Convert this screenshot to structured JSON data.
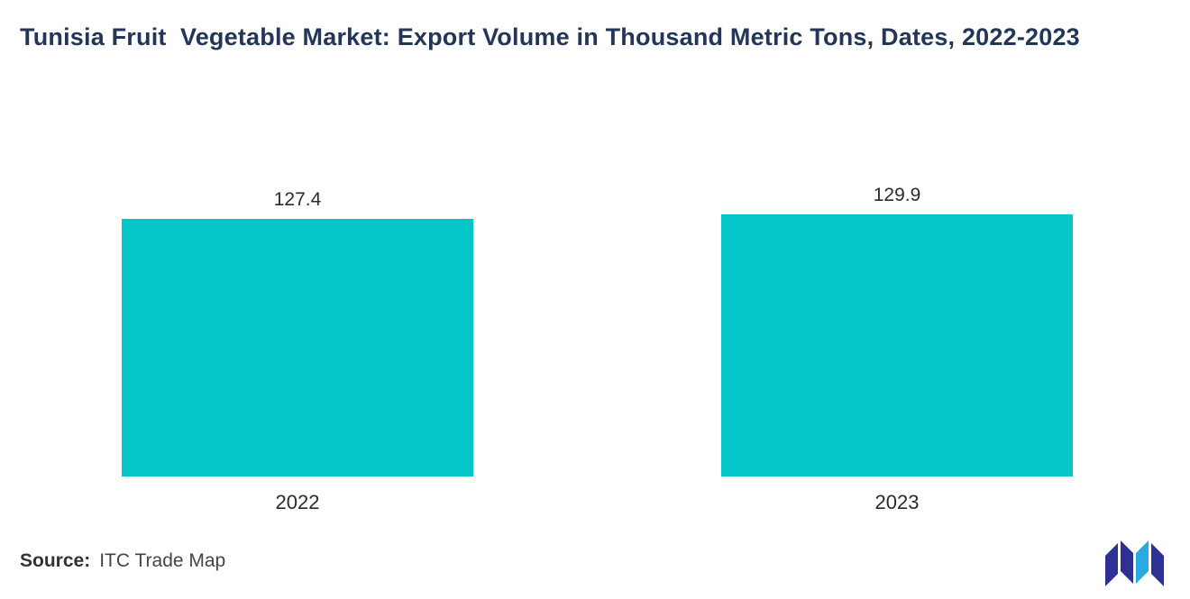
{
  "title": "Tunisia Fruit  Vegetable Market: Export Volume in Thousand Metric Tons, Dates, 2022-2023",
  "source": {
    "label": "Source:",
    "value": "ITC Trade Map"
  },
  "colors": {
    "bar": "#04c6c9",
    "title": "#233657",
    "logo_dark": "#2e3192",
    "logo_light": "#29abe2"
  },
  "chart_data": {
    "type": "bar",
    "categories": [
      "2022",
      "2023"
    ],
    "values": [
      127.4,
      129.9
    ],
    "title": "Tunisia Fruit  Vegetable Market: Export Volume in Thousand Metric Tons, Dates, 2022-2023",
    "xlabel": "",
    "ylabel": "Export Volume in Thousand Metric Tons",
    "ylim": [
      0,
      145
    ],
    "grid": false,
    "legend": "none",
    "bar_color": "#04c6c9"
  }
}
